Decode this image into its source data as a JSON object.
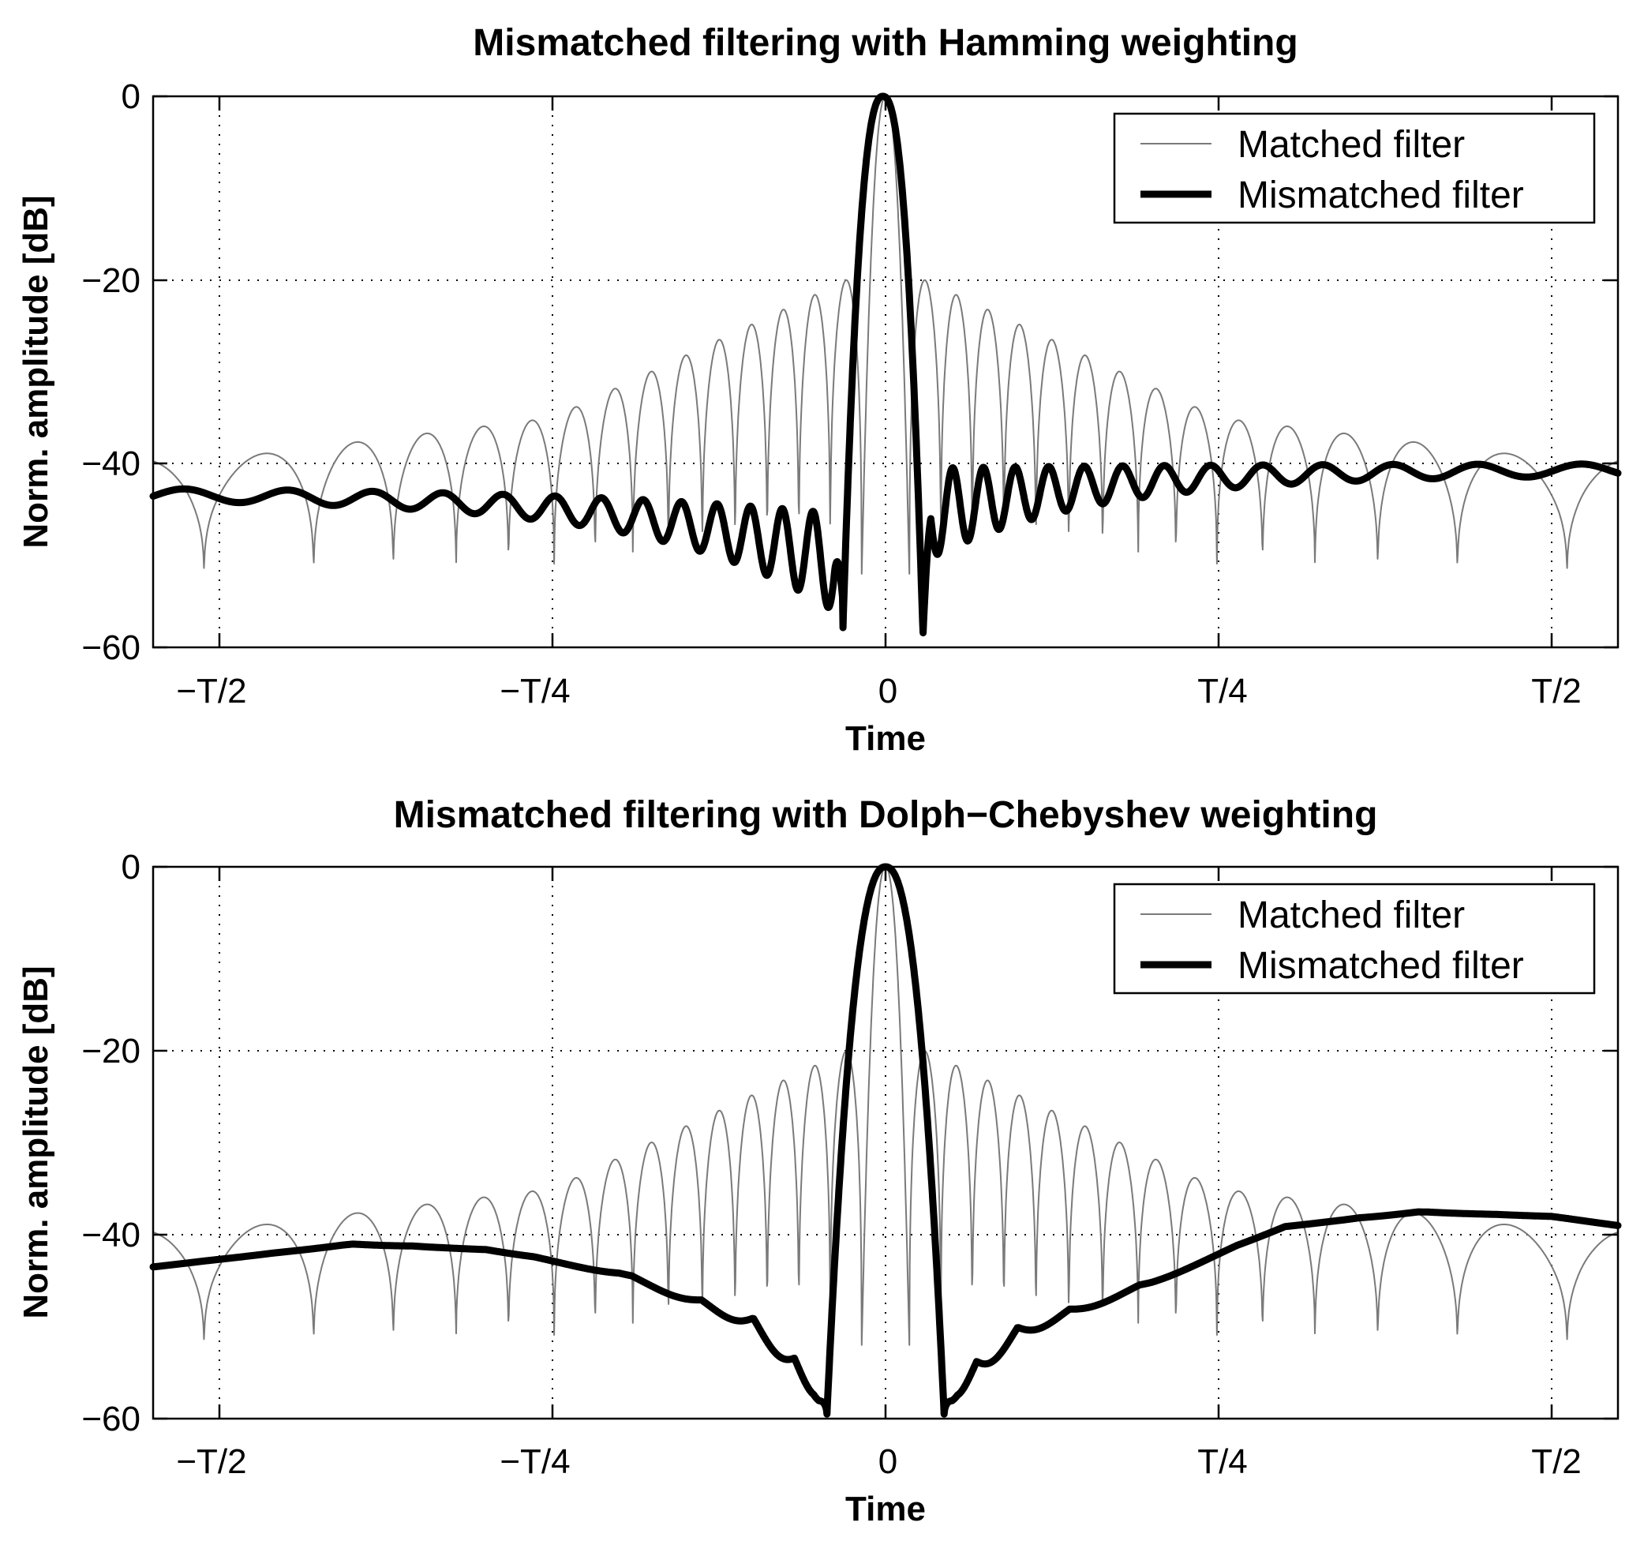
{
  "chart_data": [
    {
      "type": "line",
      "title": "Mismatched filtering with Hamming weighting",
      "xlabel": "Time",
      "ylabel": "Norm. amplitude [dB]",
      "xlim": [
        -0.55,
        0.55
      ],
      "ylim": [
        -60,
        0
      ],
      "xticks": [
        -0.5,
        -0.25,
        0,
        0.25,
        0.5
      ],
      "xtick_labels": [
        "−T/2",
        "−T/4",
        "0",
        "T/4",
        "T/2"
      ],
      "yticks": [
        0,
        -20,
        -40,
        -60
      ],
      "ytick_labels": [
        "0",
        "−20",
        "−40",
        "−60"
      ],
      "grid": true,
      "legend_position": "top-right",
      "series": [
        {
          "name": "Matched filter",
          "color": "#7a7a7a",
          "style": "thin",
          "model": {
            "kind": "matched_sinc",
            "peak_envelope": [
              [
                0,
                -18
              ],
              [
                0.25,
                -35
              ],
              [
                0.5,
                -39.5
              ]
            ],
            "main_lobe": 0.018,
            "sidelobe_period": 0.0235,
            "null_depth": -53,
            "far_lobe_period": 0.095
          }
        },
        {
          "name": "Mismatched filter",
          "color": "#000000",
          "style": "thick",
          "model": {
            "kind": "hamming_mismatched",
            "main_lobe_null": [
              -0.032,
              0.028
            ],
            "null_values": [
              -55,
              -59
            ],
            "near_floor": -47,
            "far_left": -45.5,
            "far_right": -40.5
          }
        }
      ]
    },
    {
      "type": "line",
      "title": "Mismatched filtering with Dolph−Chebyshev weighting",
      "xlabel": "Time",
      "ylabel": "Norm. amplitude [dB]",
      "xlim": [
        -0.55,
        0.55
      ],
      "ylim": [
        -60,
        0
      ],
      "xticks": [
        -0.5,
        -0.25,
        0,
        0.25,
        0.5
      ],
      "xtick_labels": [
        "−T/2",
        "−T/4",
        "0",
        "T/4",
        "T/2"
      ],
      "yticks": [
        0,
        -20,
        -40,
        -60
      ],
      "ytick_labels": [
        "0",
        "−20",
        "−40",
        "−60"
      ],
      "grid": true,
      "legend_position": "top-right",
      "series": [
        {
          "name": "Matched filter",
          "color": "#7a7a7a",
          "style": "thin",
          "model": {
            "kind": "matched_sinc",
            "peak_envelope": [
              [
                0,
                -18
              ],
              [
                0.25,
                -35
              ],
              [
                0.5,
                -39.5
              ]
            ],
            "main_lobe": 0.018,
            "sidelobe_period": 0.0235,
            "null_depth": -53,
            "far_lobe_period": 0.095
          }
        },
        {
          "name": "Mismatched filter",
          "color": "#000000",
          "style": "thick",
          "model": {
            "kind": "chebyshev_mismatched",
            "main_lobe_null": [
              -0.044,
              0.044
            ],
            "null_value": -59.5,
            "envelope": [
              [
                -0.55,
                -43.5
              ],
              [
                -0.4,
                -41
              ],
              [
                -0.3,
                -41.5
              ],
              [
                -0.2,
                -44
              ],
              [
                -0.1,
                -49
              ],
              [
                -0.05,
                -56
              ],
              [
                0.05,
                -56
              ],
              [
                0.1,
                -50
              ],
              [
                0.2,
                -45
              ],
              [
                0.3,
                -39
              ],
              [
                0.4,
                -37.5
              ],
              [
                0.5,
                -38
              ],
              [
                0.55,
                -39
              ]
            ]
          }
        }
      ]
    }
  ]
}
